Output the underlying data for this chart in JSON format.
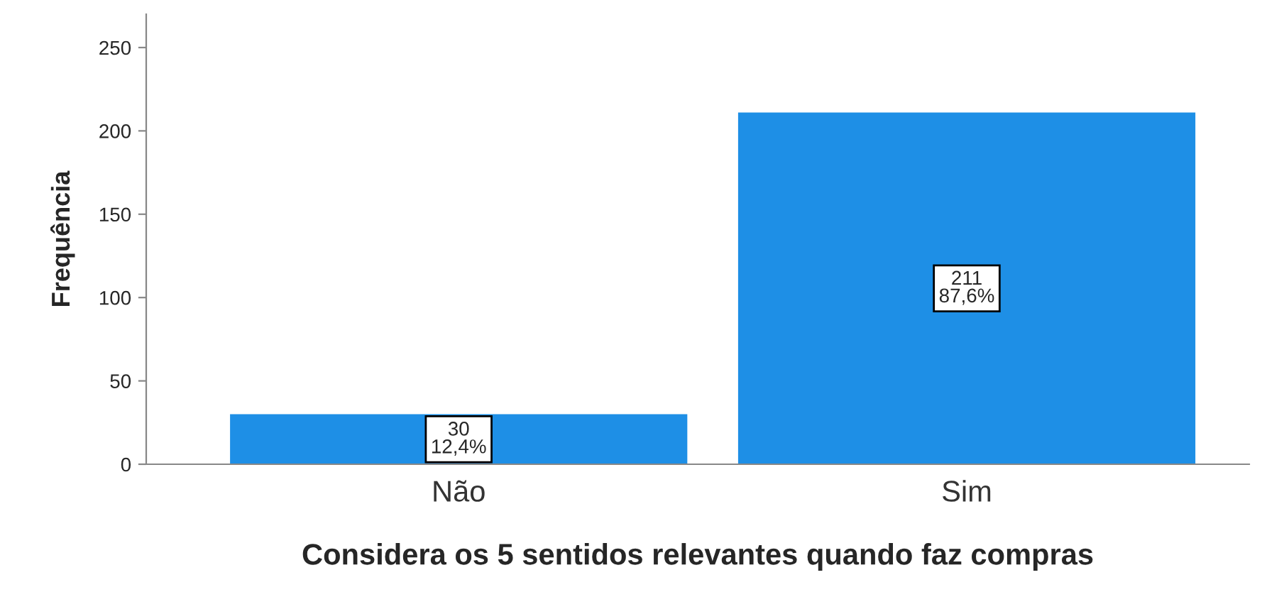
{
  "chart_data": {
    "type": "bar",
    "xlabel": "Considera os 5 sentidos relevantes quando faz compras",
    "ylabel": "Frequência",
    "categories": [
      "Não",
      "Sim"
    ],
    "values": [
      30,
      211
    ],
    "value_labels": [
      "30\n12,4%",
      "211\n87,6%"
    ],
    "color": "#1e8fe6",
    "ylim": [
      0,
      270
    ],
    "yticks": [
      0,
      50,
      100,
      150,
      200,
      250
    ],
    "grid": false,
    "legend": false
  }
}
